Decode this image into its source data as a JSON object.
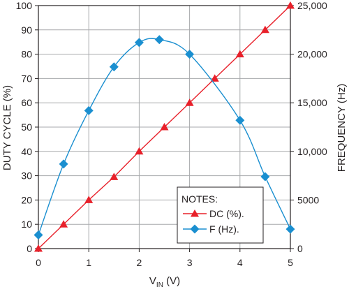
{
  "chart_data": {
    "type": "line",
    "title": "",
    "xlabel_main": "V",
    "xlabel_sub": "IN",
    "xlabel_unit": " (V)",
    "ylabel": "DUTY CYCLE (%)",
    "y2label": "FREQUENCY (Hz)",
    "xlim": [
      0,
      5
    ],
    "ylim": [
      0,
      100
    ],
    "y2lim": [
      0,
      25000
    ],
    "grid": true,
    "x_ticks": [
      "0",
      "1",
      "2",
      "3",
      "4",
      "5"
    ],
    "y_ticks": [
      "0",
      "10",
      "20",
      "30",
      "40",
      "50",
      "60",
      "70",
      "80",
      "90",
      "100"
    ],
    "y2_ticks": [
      "0",
      "5000",
      "10,000",
      "15,000",
      "20,000",
      "25,000"
    ],
    "legend": {
      "title": "NOTES:",
      "placement": "bottom-right"
    },
    "series": [
      {
        "name": "DC (%).",
        "axis": "left",
        "marker": "triangle",
        "color": "#e8202a",
        "x": [
          0,
          0.5,
          1,
          1.5,
          2,
          2.5,
          3,
          3.5,
          4,
          4.5,
          5
        ],
        "y": [
          0,
          10,
          20,
          29.5,
          40,
          50,
          60,
          70,
          80,
          90,
          100
        ]
      },
      {
        "name": "F (Hz).",
        "axis": "right",
        "marker": "diamond",
        "color": "#1a8fd0",
        "x": [
          0,
          0.5,
          1,
          1.5,
          2,
          2.4,
          3,
          4,
          4.5,
          5
        ],
        "y": [
          1400,
          8700,
          14200,
          18700,
          21200,
          21500,
          20000,
          13200,
          7400,
          2000
        ]
      }
    ]
  }
}
